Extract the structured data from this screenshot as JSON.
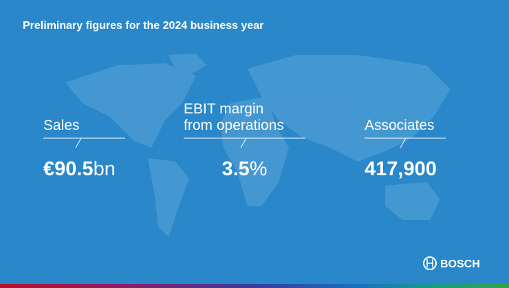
{
  "header": {
    "title": "Preliminary figures for the 2024 business year"
  },
  "figures": [
    {
      "label_lines": [
        "Sales"
      ],
      "value": "€90.5",
      "unit": "bn"
    },
    {
      "label_lines": [
        "EBIT margin",
        "from operations"
      ],
      "value": "3.5",
      "unit": "%"
    },
    {
      "label_lines": [
        "Associates"
      ],
      "value": "417,900",
      "unit": ""
    }
  ],
  "logo": {
    "text": "BOSCH"
  }
}
